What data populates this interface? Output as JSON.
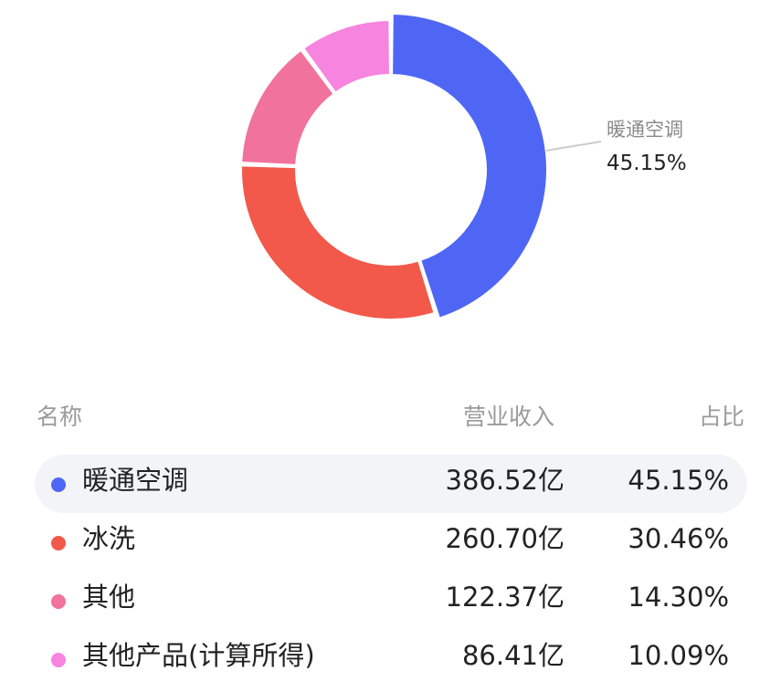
{
  "chart_data": {
    "type": "pie",
    "donut": true,
    "categories": [
      "暖通空调",
      "冰洗",
      "其他",
      "其他产品(计算所得)"
    ],
    "values": [
      386.52,
      260.7,
      122.37,
      86.41
    ],
    "percentages": [
      45.15,
      30.46,
      14.3,
      10.09
    ],
    "value_labels": [
      "386.52亿",
      "260.70亿",
      "122.37亿",
      "86.41亿"
    ],
    "percent_labels": [
      "45.15%",
      "30.46%",
      "14.30%",
      "10.09%"
    ],
    "colors": [
      "#4f66f5",
      "#f2594a",
      "#f0729d",
      "#f784df"
    ],
    "highlighted_index": 0,
    "legend": "table-below"
  },
  "callout": {
    "name": "暖通空调",
    "percent": "45.15%"
  },
  "table": {
    "headers": {
      "name": "名称",
      "revenue": "营业收入",
      "share": "占比"
    },
    "rows": [
      {
        "name": "暖通空调",
        "revenue": "386.52亿",
        "share": "45.15%"
      },
      {
        "name": "冰洗",
        "revenue": "260.70亿",
        "share": "30.46%"
      },
      {
        "name": "其他",
        "revenue": "122.37亿",
        "share": "14.30%"
      },
      {
        "name": "其他产品(计算所得)",
        "revenue": "86.41亿",
        "share": "10.09%"
      }
    ]
  }
}
